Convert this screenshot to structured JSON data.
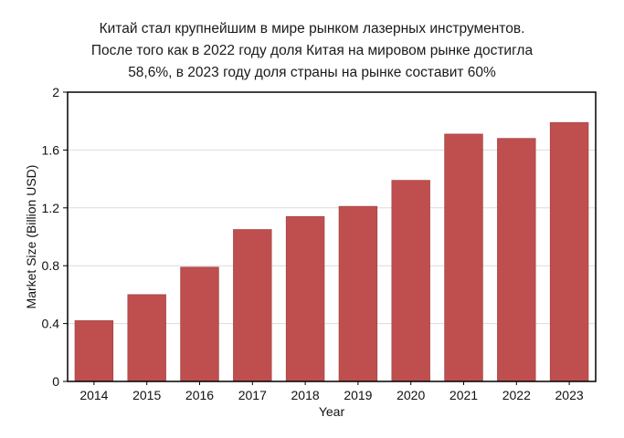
{
  "chart_data": {
    "type": "bar",
    "title_lines": [
      "Китай стал крупнейшим в мире рынком лазерных инструментов.",
      "После того как в 2022 году доля Китая на мировом рынке достигла",
      "58,6%,  в 2023 году доля страны на рынке составит 60%"
    ],
    "xlabel": "Year",
    "ylabel": "Market Size (Billion USD)",
    "categories": [
      "2014",
      "2015",
      "2016",
      "2017",
      "2018",
      "2019",
      "2020",
      "2021",
      "2022",
      "2023"
    ],
    "values": [
      0.42,
      0.6,
      0.79,
      1.05,
      1.14,
      1.21,
      1.39,
      1.71,
      1.68,
      1.79
    ],
    "ylim": [
      0,
      2
    ],
    "yticks": [
      0,
      0.4,
      0.8,
      1.2,
      1.6,
      2
    ],
    "ytick_labels": [
      "0",
      "0.4",
      "0.8",
      "1.2",
      "1.6",
      "2"
    ],
    "grid": true,
    "legend": "none",
    "colors": {
      "bar": "#bf4f4f",
      "bar_edge": "#a84444",
      "grid": "#dcdcdc",
      "axis": "#000000"
    }
  }
}
